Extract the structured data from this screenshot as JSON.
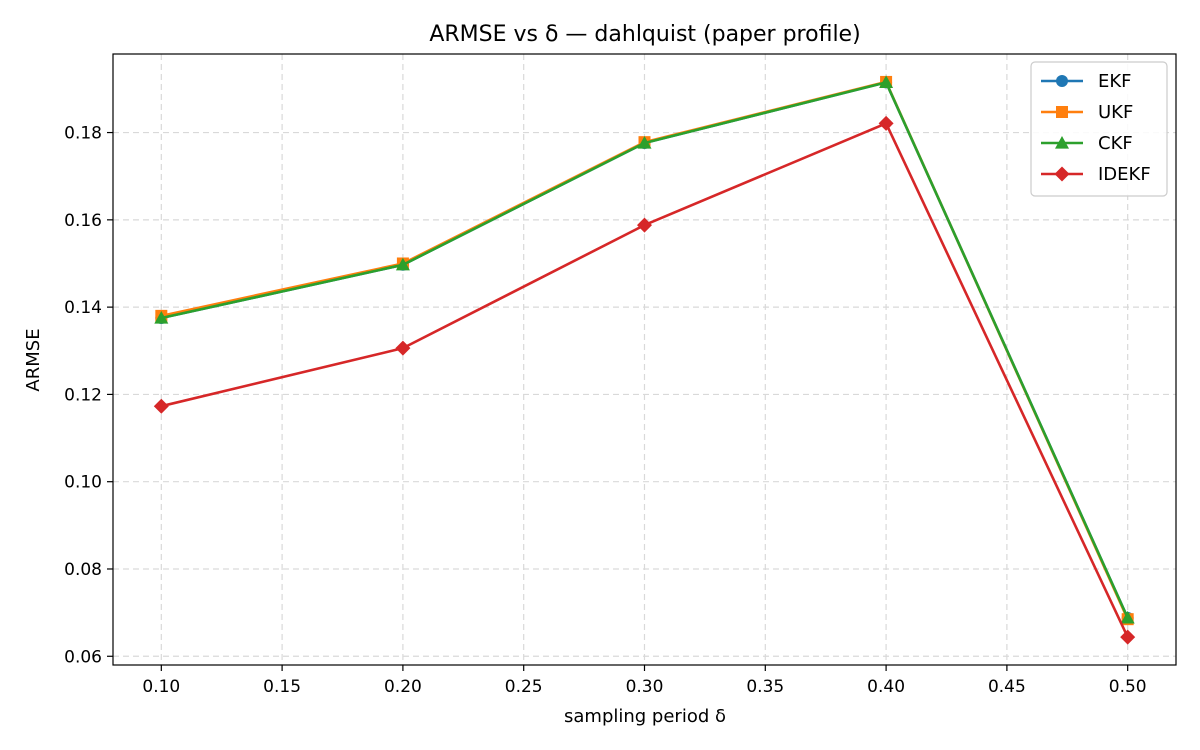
{
  "chart_data": {
    "type": "line",
    "title": "ARMSE vs δ — dahlquist (paper profile)",
    "xlabel": "sampling period δ",
    "ylabel": "ARMSE",
    "x": [
      0.1,
      0.2,
      0.3,
      0.4,
      0.5
    ],
    "xlim": [
      0.08,
      0.52
    ],
    "ylim": [
      0.058,
      0.198
    ],
    "xticks": [
      0.1,
      0.15,
      0.2,
      0.25,
      0.3,
      0.35,
      0.4,
      0.45,
      0.5
    ],
    "xtick_labels": [
      "0.10",
      "0.15",
      "0.20",
      "0.25",
      "0.30",
      "0.35",
      "0.40",
      "0.45",
      "0.50"
    ],
    "yticks": [
      0.06,
      0.08,
      0.1,
      0.12,
      0.14,
      0.16,
      0.18
    ],
    "ytick_labels": [
      "0.06",
      "0.08",
      "0.10",
      "0.12",
      "0.14",
      "0.16",
      "0.18"
    ],
    "grid": true,
    "legend_position": "top-right",
    "series": [
      {
        "name": "EKF",
        "color": "#1f77b4",
        "marker": "circle",
        "values": [
          0.1375,
          0.1497,
          0.1776,
          0.1915,
          0.0688
        ]
      },
      {
        "name": "UKF",
        "color": "#ff7f0e",
        "marker": "square",
        "values": [
          0.138,
          0.15,
          0.1778,
          0.1916,
          0.0685
        ]
      },
      {
        "name": "CKF",
        "color": "#2ca02c",
        "marker": "triangle",
        "values": [
          0.1375,
          0.1497,
          0.1776,
          0.1915,
          0.0688
        ]
      },
      {
        "name": "IDEKF",
        "color": "#d62728",
        "marker": "diamond",
        "values": [
          0.1173,
          0.1306,
          0.1588,
          0.1821,
          0.0644
        ]
      }
    ]
  }
}
